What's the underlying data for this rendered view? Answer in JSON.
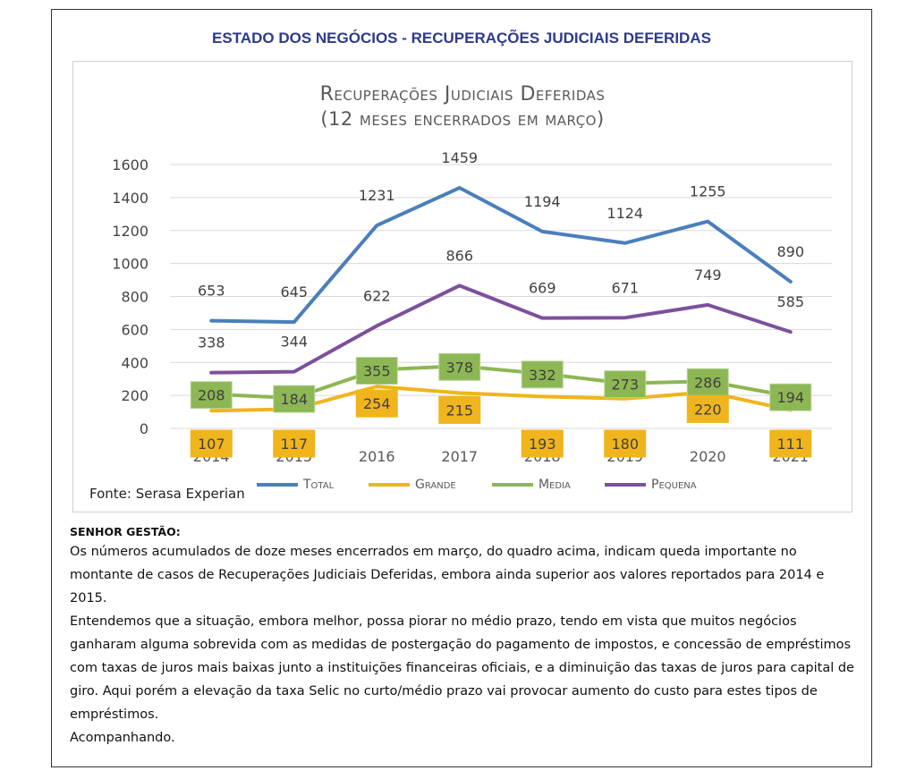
{
  "header": "ESTADO DOS NEGÓCIOS - RECUPERAÇÕES JUDICIAIS DEFERIDAS",
  "chart_data": {
    "type": "line",
    "title": "Recuperações Judiciais Deferidas",
    "subtitle": "(12 meses encerrados em março)",
    "categories": [
      "2014",
      "2015",
      "2016",
      "2017",
      "2018",
      "2019",
      "2020",
      "2021"
    ],
    "y_ticks": [
      "0",
      "200",
      "400",
      "600",
      "800",
      "1000",
      "1200",
      "1400",
      "1600"
    ],
    "ylim": [
      0,
      1600
    ],
    "grid": true,
    "series": [
      {
        "name": "Total",
        "color": "#4a7fbb",
        "values": [
          653,
          645,
          1231,
          1459,
          1194,
          1124,
          1255,
          890
        ],
        "labels": [
          "653",
          "645",
          "1231",
          "1459",
          "1194",
          "1124",
          "1255",
          "890"
        ],
        "label_style": "plain"
      },
      {
        "name": "Grande",
        "color": "#f0b41c",
        "values": [
          107,
          117,
          254,
          215,
          193,
          180,
          220,
          111
        ],
        "labels": [
          "107",
          "117",
          "254",
          "215",
          "193",
          "180",
          "220",
          "111"
        ],
        "label_style": "box"
      },
      {
        "name": "Media",
        "color": "#8db654",
        "values": [
          208,
          184,
          355,
          378,
          332,
          273,
          286,
          194
        ],
        "labels": [
          "208",
          "184",
          "355",
          "378",
          "332",
          "273",
          "286",
          "194"
        ],
        "label_style": "box"
      },
      {
        "name": "Pequena",
        "color": "#7d509d",
        "values": [
          338,
          344,
          622,
          866,
          669,
          671,
          749,
          585
        ],
        "labels": [
          "338",
          "344",
          "622",
          "866",
          "669",
          "671",
          "749",
          "585"
        ],
        "label_style": "plain"
      }
    ],
    "legend": "bottom"
  },
  "source": "Fonte: Serasa Experian",
  "commentary": {
    "heading": "SENHOR GESTÃO:",
    "paragraphs": [
      "Os números acumulados de doze meses encerrados em março, do quadro acima, indicam queda importante no montante de casos de Recuperações Judiciais Deferidas, embora ainda superior aos valores reportados para 2014 e 2015.",
      "Entendemos que a situação, embora melhor, possa piorar no médio prazo, tendo em vista que muitos negócios ganharam alguma sobrevida com as medidas de postergação do pagamento de impostos, e concessão de empréstimos com taxas de juros mais baixas junto a instituições financeiras oficiais, e a diminuição das taxas de juros para capital de giro. Aqui porém a elevação da taxa Selic no curto/médio prazo vai provocar aumento do custo para estes tipos de empréstimos.",
      "Acompanhando."
    ]
  }
}
